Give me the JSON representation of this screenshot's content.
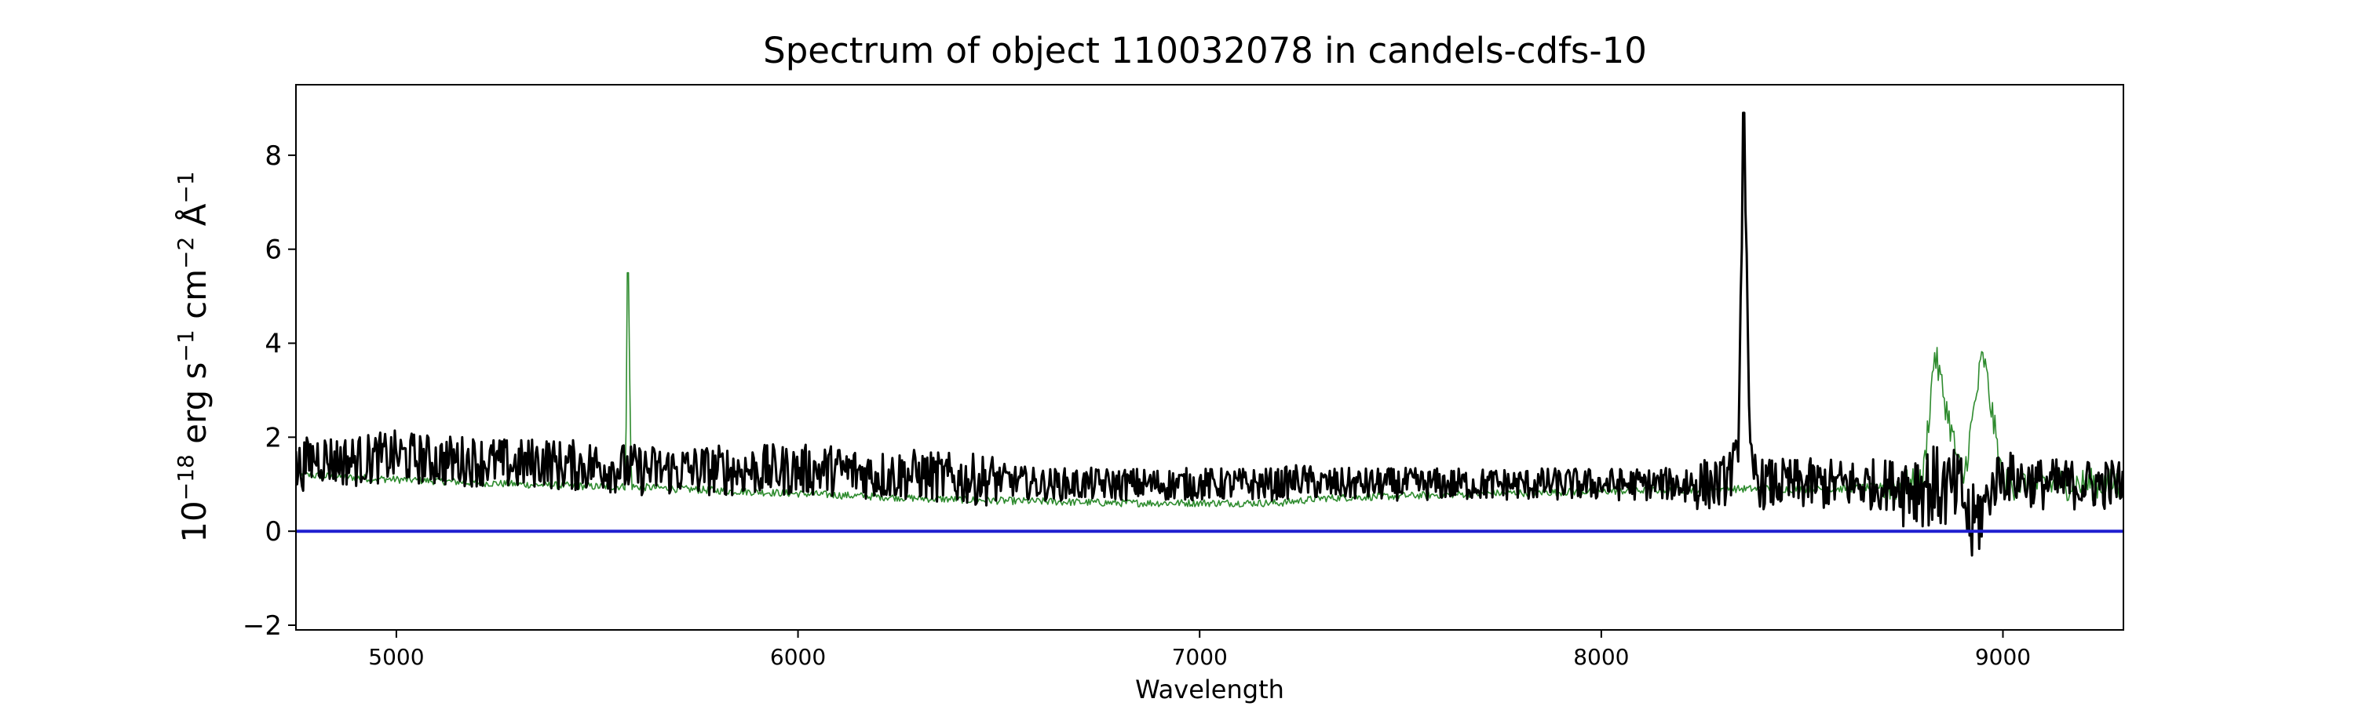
{
  "chart_data": {
    "type": "line",
    "title": "Spectrum of object 110032078 in candels-cdfs-10",
    "xlabel": "Wavelength",
    "ylabel_parts": {
      "base1": "10",
      "exp1": "−18",
      "base2": " erg s",
      "exp2": "−1",
      "base3": " cm",
      "exp3": "−2",
      "base4": " Å",
      "exp4": "−1"
    },
    "xlim": [
      4750,
      9300
    ],
    "ylim": [
      -2.1,
      9.5
    ],
    "x_ticks": [
      5000,
      6000,
      7000,
      8000,
      9000
    ],
    "x_tick_labels": [
      "5000",
      "6000",
      "7000",
      "8000",
      "9000"
    ],
    "y_ticks": [
      -2,
      0,
      2,
      4,
      6,
      8
    ],
    "y_tick_labels": [
      "−2",
      "0",
      "2",
      "4",
      "6",
      "8"
    ],
    "grid": false,
    "series": [
      {
        "role": "flux",
        "color": "#000000",
        "x": [
          4750,
          4800,
          4850,
          4900,
          5000,
          5100,
          5200,
          5300,
          5370,
          5400,
          5500,
          5600,
          5700,
          5800,
          5900,
          6000,
          6100,
          6200,
          6300,
          6400,
          6500,
          6600,
          6700,
          6800,
          6900,
          7000,
          7100,
          7200,
          7250,
          7300,
          7400,
          7500,
          7600,
          7700,
          7800,
          7900,
          8000,
          8100,
          8200,
          8300,
          8340,
          8355,
          8370,
          8400,
          8500,
          8600,
          8700,
          8800,
          8900,
          8920,
          8990,
          9100,
          9200,
          9300
        ],
        "y": [
          1.3,
          1.6,
          1.5,
          1.5,
          1.6,
          1.5,
          1.5,
          1.4,
          1.5,
          1.4,
          1.4,
          1.3,
          1.3,
          1.3,
          1.3,
          1.3,
          1.3,
          1.2,
          1.2,
          1.1,
          1.1,
          1.0,
          1.0,
          1.0,
          1.0,
          1.0,
          1.0,
          1.0,
          1.1,
          1.0,
          1.0,
          1.0,
          1.0,
          1.0,
          1.0,
          1.0,
          1.0,
          1.0,
          1.0,
          1.0,
          1.5,
          8.9,
          1.4,
          1.0,
          1.0,
          1.0,
          1.0,
          1.0,
          0.8,
          0.0,
          1.2,
          1.0,
          1.0,
          1.0
        ]
      },
      {
        "role": "model",
        "color": "#2e8b2e",
        "x": [
          4750,
          5000,
          5300,
          5500,
          5570,
          5577,
          5585,
          5700,
          6000,
          6300,
          6500,
          6800,
          7000,
          7200,
          7300,
          7500,
          7700,
          8000,
          8300,
          8600,
          8800,
          8830,
          8900,
          8950,
          9000,
          9300
        ],
        "y": [
          1.2,
          1.1,
          1.0,
          0.95,
          0.95,
          5.5,
          0.95,
          0.9,
          0.8,
          0.7,
          0.65,
          0.6,
          0.6,
          0.6,
          0.7,
          0.75,
          0.8,
          0.85,
          0.9,
          0.9,
          1.0,
          3.8,
          1.0,
          3.8,
          1.0,
          1.0
        ]
      },
      {
        "role": "zero",
        "color": "#1f1fd0",
        "x": [
          4750,
          9300
        ],
        "y": [
          0,
          0
        ]
      }
    ]
  }
}
